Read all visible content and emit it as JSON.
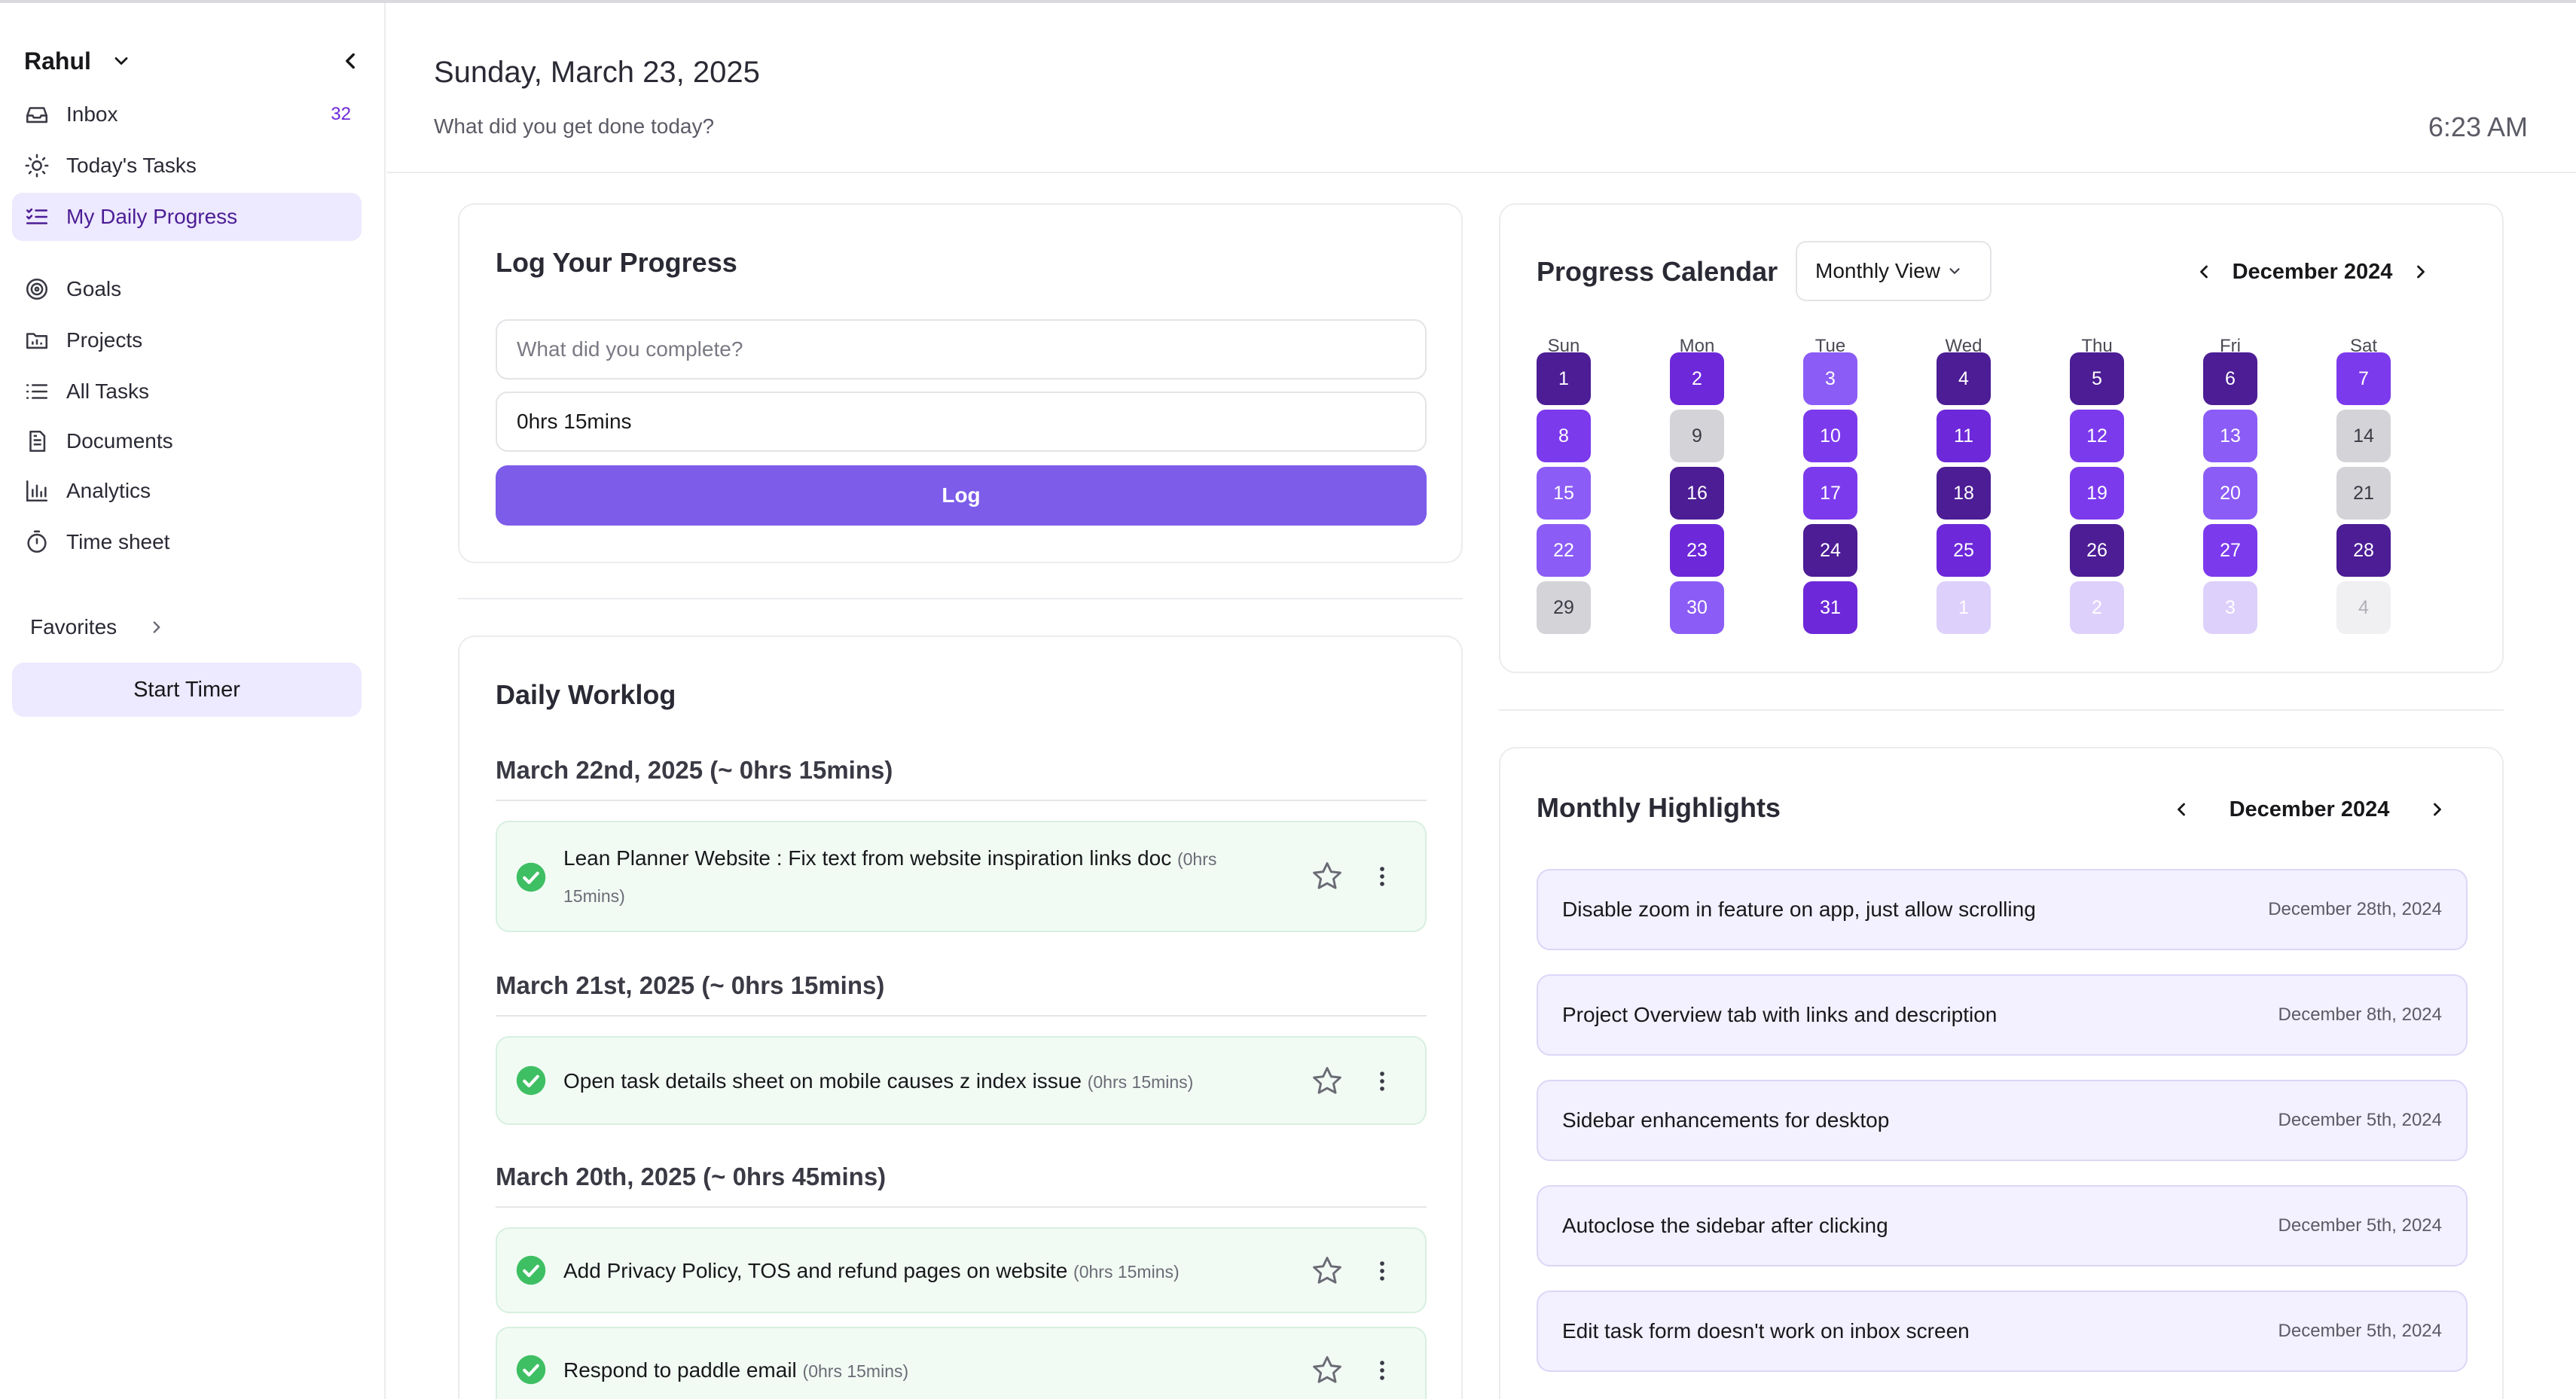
{
  "sidebar": {
    "user": "Rahul",
    "items": [
      {
        "label": "Inbox",
        "icon": "inbox-icon",
        "count": "32"
      },
      {
        "label": "Today's Tasks",
        "icon": "sun-icon"
      },
      {
        "label": "My Daily Progress",
        "icon": "list-check-icon",
        "active": true
      },
      {
        "label": "Goals",
        "icon": "target-icon"
      },
      {
        "label": "Projects",
        "icon": "folder-chart-icon"
      },
      {
        "label": "All Tasks",
        "icon": "list-icon"
      },
      {
        "label": "Documents",
        "icon": "document-icon"
      },
      {
        "label": "Analytics",
        "icon": "bar-chart-icon"
      },
      {
        "label": "Time sheet",
        "icon": "timer-icon"
      }
    ],
    "favorites_label": "Favorites",
    "start_timer_label": "Start Timer"
  },
  "header": {
    "date": "Sunday, March 23, 2025",
    "subtitle": "What did you get done today?",
    "time": "6:23 AM"
  },
  "log": {
    "title": "Log Your Progress",
    "task_placeholder": "What did you complete?",
    "duration_value": "0hrs 15mins",
    "button_label": "Log"
  },
  "worklog": {
    "title": "Daily Worklog",
    "days": [
      {
        "heading": "March 22nd, 2025 (~ 0hrs 15mins)",
        "tasks": [
          {
            "text": "Lean Planner Website : Fix text from website inspiration links doc",
            "duration": "(0hrs 15mins)"
          }
        ]
      },
      {
        "heading": "March 21st, 2025 (~ 0hrs 15mins)",
        "tasks": [
          {
            "text": "Open task details sheet on mobile causes z index issue",
            "duration": "(0hrs 15mins)"
          }
        ]
      },
      {
        "heading": "March 20th, 2025 (~ 0hrs 45mins)",
        "tasks": [
          {
            "text": "Add Privacy Policy, TOS and refund pages on website",
            "duration": "(0hrs 15mins)"
          },
          {
            "text": "Respond to paddle email",
            "duration": "(0hrs 15mins)"
          }
        ]
      }
    ]
  },
  "calendar": {
    "title": "Progress Calendar",
    "view": "Monthly View",
    "month": "December 2024",
    "weekdays": [
      "Sun",
      "Mon",
      "Tue",
      "Wed",
      "Thu",
      "Fri",
      "Sat"
    ],
    "days": [
      {
        "d": "1",
        "level": 4
      },
      {
        "d": "2",
        "level": 3
      },
      {
        "d": "3",
        "level": 1
      },
      {
        "d": "4",
        "level": 4
      },
      {
        "d": "5",
        "level": 4
      },
      {
        "d": "6",
        "level": 4
      },
      {
        "d": "7",
        "level": 2
      },
      {
        "d": "8",
        "level": 2
      },
      {
        "d": "9",
        "level": 0
      },
      {
        "d": "10",
        "level": 2
      },
      {
        "d": "11",
        "level": 3
      },
      {
        "d": "12",
        "level": 2
      },
      {
        "d": "13",
        "level": 1
      },
      {
        "d": "14",
        "level": 0
      },
      {
        "d": "15",
        "level": 1
      },
      {
        "d": "16",
        "level": 4
      },
      {
        "d": "17",
        "level": 2
      },
      {
        "d": "18",
        "level": 4
      },
      {
        "d": "19",
        "level": 2
      },
      {
        "d": "20",
        "level": 1
      },
      {
        "d": "21",
        "level": 0
      },
      {
        "d": "22",
        "level": 1
      },
      {
        "d": "23",
        "level": 3
      },
      {
        "d": "24",
        "level": 4
      },
      {
        "d": "25",
        "level": 3
      },
      {
        "d": "26",
        "level": 4
      },
      {
        "d": "27",
        "level": 2
      },
      {
        "d": "28",
        "level": 4
      },
      {
        "d": "29",
        "level": 0
      },
      {
        "d": "30",
        "level": 1
      },
      {
        "d": "31",
        "level": 3
      },
      {
        "d": "1",
        "level": "other"
      },
      {
        "d": "2",
        "level": "other"
      },
      {
        "d": "3",
        "level": "other"
      },
      {
        "d": "4",
        "level": "other-empty"
      }
    ]
  },
  "highlights": {
    "title": "Monthly Highlights",
    "month": "December 2024",
    "items": [
      {
        "text": "Disable zoom in feature on app, just allow scrolling",
        "date": "December 28th, 2024"
      },
      {
        "text": "Project Overview tab with links and description",
        "date": "December 8th, 2024"
      },
      {
        "text": "Sidebar enhancements for desktop",
        "date": "December 5th, 2024"
      },
      {
        "text": "Autoclose the sidebar after clicking",
        "date": "December 5th, 2024"
      },
      {
        "text": "Edit task form doesn't work on inbox screen",
        "date": "December 5th, 2024"
      }
    ]
  },
  "colors": {
    "accent": "#7c5ce9",
    "active_nav_bg": "#ede9fe",
    "level1": "#8b5cf6",
    "level2": "#7c3aed",
    "level3": "#6d28d9",
    "level4": "#4c1d95",
    "task_bg": "#f1fbf4",
    "check_green": "#3fbf63"
  }
}
